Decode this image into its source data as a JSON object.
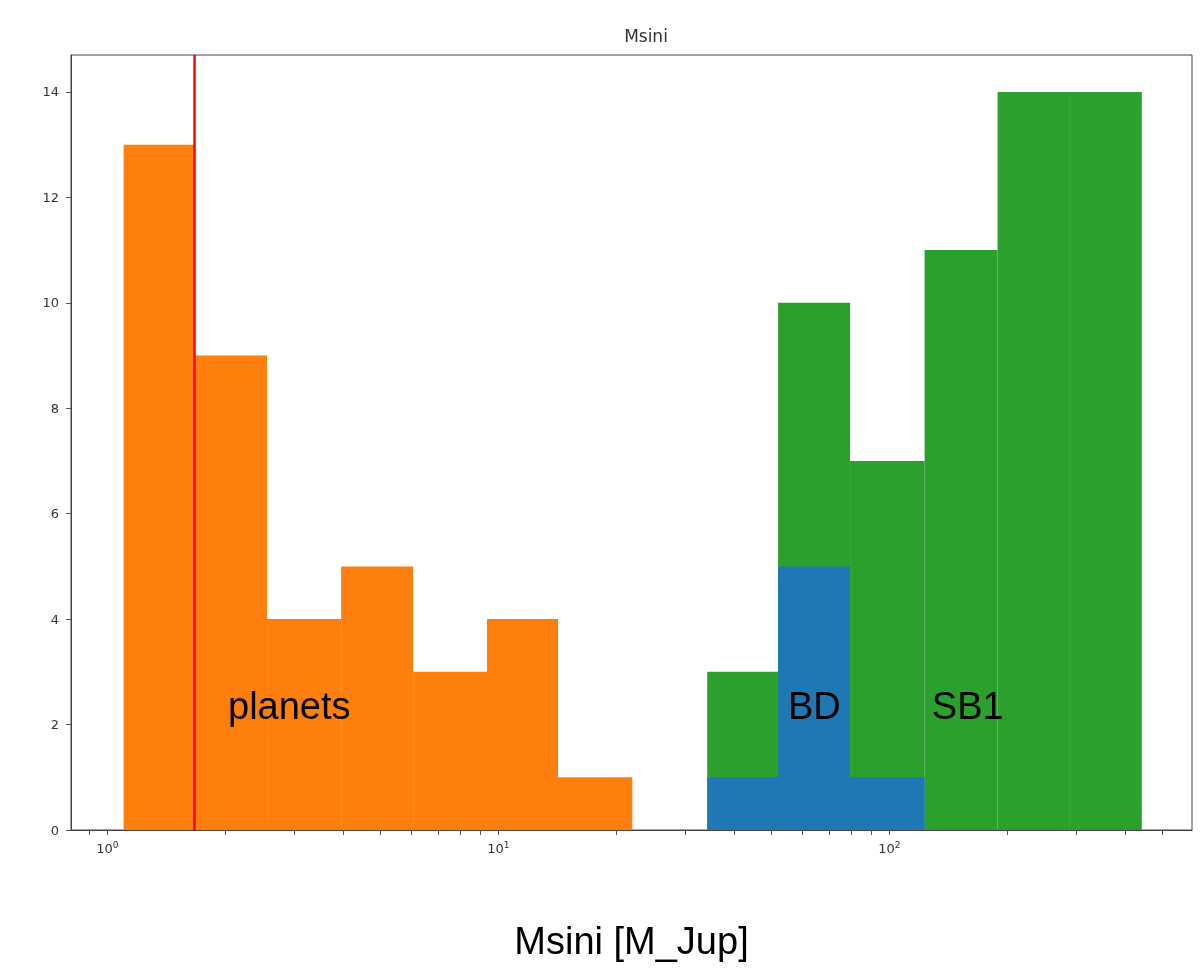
{
  "chart_data": {
    "type": "histogram",
    "title": "Msini",
    "xlabel": "Msini [M_Jup]",
    "log": "x",
    "xlim": [
      0.807,
      594
    ],
    "xticks": [
      {
        "value": 0.9,
        "label": null
      },
      {
        "value": 1,
        "label": "10$^{0}$"
      },
      {
        "value": 2,
        "label": null
      },
      {
        "value": 3,
        "label": null
      },
      {
        "value": 4,
        "label": null
      },
      {
        "value": 5,
        "label": null
      },
      {
        "value": 6,
        "label": null
      },
      {
        "value": 7,
        "label": null
      },
      {
        "value": 8,
        "label": null
      },
      {
        "value": 9,
        "label": null
      },
      {
        "value": 10,
        "label": "10$^{1}$"
      },
      {
        "value": 20,
        "label": null
      },
      {
        "value": 30,
        "label": null
      },
      {
        "value": 40,
        "label": null
      },
      {
        "value": 50,
        "label": null
      },
      {
        "value": 60,
        "label": null
      },
      {
        "value": 70,
        "label": null
      },
      {
        "value": 80,
        "label": null
      },
      {
        "value": 90,
        "label": null
      },
      {
        "value": 100,
        "label": "10$^{2}$"
      },
      {
        "value": 200,
        "label": null
      },
      {
        "value": 300,
        "label": null
      },
      {
        "value": 400,
        "label": null
      },
      {
        "value": 500,
        "label": null
      }
    ],
    "ylim": [
      0,
      14.7
    ],
    "yticks": [
      0,
      2,
      4,
      6,
      8,
      10,
      12,
      14
    ],
    "grid": false,
    "legend": false,
    "bins": [
      1.1,
      1.67,
      2.56,
      3.96,
      6.05,
      9.35,
      14.2,
      22.0,
      34.2,
      51.9,
      79.3,
      123,
      189,
      288,
      442
    ],
    "series": [
      {
        "name": "planets",
        "color": "#ff7f0e",
        "values": [
          13,
          9,
          4,
          5,
          3,
          4,
          1,
          null,
          null,
          null,
          null,
          null,
          null,
          null
        ]
      },
      {
        "name": "SB1",
        "color": "#2ca02c",
        "values": [
          null,
          null,
          null,
          null,
          null,
          null,
          null,
          null,
          3,
          10,
          7,
          11,
          14,
          14
        ]
      },
      {
        "name": "BD",
        "color": "#1f77b4",
        "values": [
          null,
          null,
          null,
          null,
          null,
          null,
          null,
          null,
          1,
          5,
          1,
          null,
          null,
          null
        ]
      }
    ],
    "ref_lines": [
      {
        "axis": "x",
        "value": 1.67,
        "label": null,
        "color": "#ff0000",
        "line_style": "solid"
      }
    ]
  }
}
